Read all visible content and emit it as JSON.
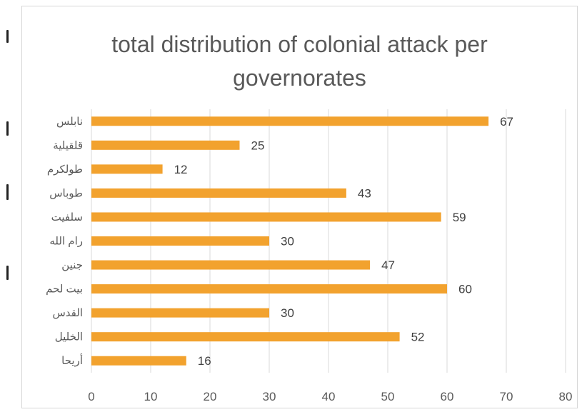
{
  "chart_data": {
    "type": "bar",
    "orientation": "horizontal",
    "title_lines": [
      "total distribution of colonial attack per",
      "governorates"
    ],
    "categories": [
      "نابلس",
      "قلقيلية",
      "طولكرم",
      "طوباس",
      "سلفيت",
      "رام الله",
      "جنين",
      "بيت لحم",
      "القدس",
      "الخليل",
      "أريحا"
    ],
    "values": [
      67,
      25,
      12,
      43,
      59,
      30,
      47,
      60,
      30,
      52,
      16
    ],
    "xlim": [
      0,
      80
    ],
    "xticks": [
      0,
      10,
      20,
      30,
      40,
      50,
      60,
      70,
      80
    ],
    "grid": "vertical",
    "data_labels": true,
    "legend": "none",
    "bar_color": "#f2a22e",
    "grid_color": "#d9d9d9",
    "label_color": "#595959"
  }
}
